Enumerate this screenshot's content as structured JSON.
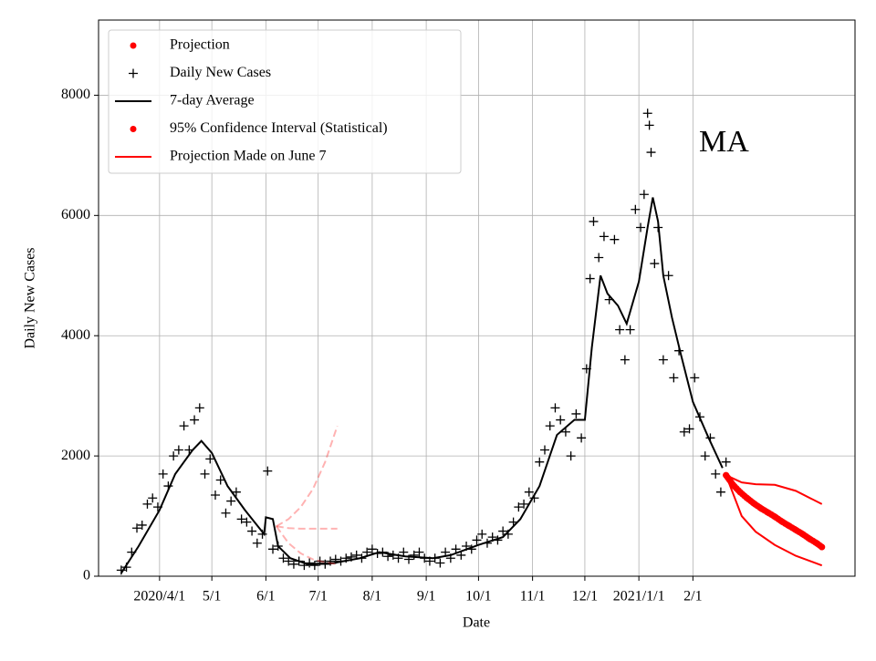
{
  "chart_data": {
    "type": "line",
    "xlabel": "Date",
    "ylabel": "Daily New Cases",
    "annotation": "MA",
    "xlim": [
      "2020-02-26",
      "2021-05-05"
    ],
    "ylim": [
      0,
      9250
    ],
    "xticks": [
      {
        "value": "2020-04-01",
        "label": "2020/4/1"
      },
      {
        "value": "2020-05-01",
        "label": "5/1"
      },
      {
        "value": "2020-06-01",
        "label": "6/1"
      },
      {
        "value": "2020-07-01",
        "label": "7/1"
      },
      {
        "value": "2020-08-01",
        "label": "8/1"
      },
      {
        "value": "2020-09-01",
        "label": "9/1"
      },
      {
        "value": "2020-10-01",
        "label": "10/1"
      },
      {
        "value": "2020-11-01",
        "label": "11/1"
      },
      {
        "value": "2020-12-01",
        "label": "12/1"
      },
      {
        "value": "2021-01-01",
        "label": "2021/1/1"
      },
      {
        "value": "2021-02-01",
        "label": "2/1"
      }
    ],
    "yticks": [
      0,
      2000,
      4000,
      6000,
      8000
    ],
    "grid": true,
    "legend": "upper left",
    "series": [
      {
        "name": "Projection",
        "color": "#ff0000",
        "kind": "dots",
        "legend_marker": "dot",
        "x": [
          "2021-02-20",
          "2021-02-24",
          "2021-02-28",
          "2021-03-04",
          "2021-03-08",
          "2021-03-12",
          "2021-03-16",
          "2021-03-20",
          "2021-03-24",
          "2021-03-28",
          "2021-04-01",
          "2021-04-05",
          "2021-04-09",
          "2021-04-13",
          "2021-04-16"
        ],
        "values": [
          1680,
          1520,
          1400,
          1300,
          1210,
          1130,
          1060,
          990,
          910,
          840,
          770,
          700,
          620,
          550,
          485
        ]
      },
      {
        "name": "Daily New Cases",
        "color": "#000000",
        "kind": "plus",
        "legend_marker": "plus",
        "x": [
          "2020-03-10",
          "2020-03-13",
          "2020-03-16",
          "2020-03-19",
          "2020-03-22",
          "2020-03-25",
          "2020-03-28",
          "2020-03-31",
          "2020-04-03",
          "2020-04-06",
          "2020-04-09",
          "2020-04-12",
          "2020-04-15",
          "2020-04-18",
          "2020-04-21",
          "2020-04-24",
          "2020-04-27",
          "2020-04-30",
          "2020-05-03",
          "2020-05-06",
          "2020-05-09",
          "2020-05-12",
          "2020-05-15",
          "2020-05-18",
          "2020-05-21",
          "2020-05-24",
          "2020-05-27",
          "2020-05-30",
          "2020-06-02",
          "2020-06-05",
          "2020-06-08",
          "2020-06-11",
          "2020-06-14",
          "2020-06-17",
          "2020-06-20",
          "2020-06-23",
          "2020-06-26",
          "2020-06-29",
          "2020-07-02",
          "2020-07-05",
          "2020-07-08",
          "2020-07-11",
          "2020-07-14",
          "2020-07-17",
          "2020-07-20",
          "2020-07-23",
          "2020-07-26",
          "2020-07-29",
          "2020-08-01",
          "2020-08-04",
          "2020-08-07",
          "2020-08-10",
          "2020-08-13",
          "2020-08-16",
          "2020-08-19",
          "2020-08-22",
          "2020-08-25",
          "2020-08-28",
          "2020-08-31",
          "2020-09-03",
          "2020-09-06",
          "2020-09-09",
          "2020-09-12",
          "2020-09-15",
          "2020-09-18",
          "2020-09-21",
          "2020-09-24",
          "2020-09-27",
          "2020-09-30",
          "2020-10-03",
          "2020-10-06",
          "2020-10-09",
          "2020-10-12",
          "2020-10-15",
          "2020-10-18",
          "2020-10-21",
          "2020-10-24",
          "2020-10-27",
          "2020-10-30",
          "2020-11-02",
          "2020-11-05",
          "2020-11-08",
          "2020-11-11",
          "2020-11-14",
          "2020-11-17",
          "2020-11-20",
          "2020-11-23",
          "2020-11-26",
          "2020-11-29",
          "2020-12-02",
          "2020-12-04",
          "2020-12-06",
          "2020-12-09",
          "2020-12-12",
          "2020-12-15",
          "2020-12-18",
          "2020-12-21",
          "2020-12-24",
          "2020-12-27",
          "2020-12-30",
          "2021-01-02",
          "2021-01-04",
          "2021-01-06",
          "2021-01-07",
          "2021-01-08",
          "2021-01-10",
          "2021-01-12",
          "2021-01-15",
          "2021-01-18",
          "2021-01-21",
          "2021-01-24",
          "2021-01-27",
          "2021-01-30",
          "2021-02-02",
          "2021-02-05",
          "2021-02-08",
          "2021-02-11",
          "2021-02-14",
          "2021-02-17",
          "2021-02-20"
        ],
        "values": [
          100,
          150,
          400,
          800,
          850,
          1200,
          1300,
          1150,
          1700,
          1500,
          2000,
          2100,
          2500,
          2100,
          2600,
          2800,
          1700,
          1950,
          1350,
          1600,
          1050,
          1250,
          1400,
          950,
          900,
          750,
          550,
          700,
          1750,
          450,
          500,
          300,
          250,
          200,
          250,
          180,
          220,
          180,
          250,
          200,
          250,
          280,
          250,
          300,
          320,
          350,
          300,
          400,
          450,
          380,
          400,
          330,
          350,
          300,
          400,
          280,
          350,
          400,
          300,
          250,
          300,
          220,
          400,
          300,
          450,
          350,
          500,
          450,
          600,
          700,
          550,
          650,
          600,
          750,
          700,
          900,
          1150,
          1200,
          1400,
          1300,
          1900,
          2100,
          2500,
          2800,
          2600,
          2400,
          2000,
          2700,
          2300,
          3450,
          4950,
          5900,
          5300,
          5650,
          4600,
          5600,
          4100,
          3600,
          4100,
          6100,
          5800,
          6350,
          7700,
          7500,
          7050,
          5200,
          5800,
          3600,
          5000,
          3300,
          3750,
          2400,
          2450,
          3300,
          2650,
          2000,
          2300,
          1700,
          1400,
          1900
        ]
      },
      {
        "name": "7-day Average",
        "color": "#000000",
        "kind": "line",
        "legend_marker": "line",
        "x": [
          "2020-03-10",
          "2020-03-20",
          "2020-04-01",
          "2020-04-10",
          "2020-04-20",
          "2020-04-25",
          "2020-05-01",
          "2020-05-10",
          "2020-05-20",
          "2020-05-31",
          "2020-06-01",
          "2020-06-05",
          "2020-06-08",
          "2020-06-15",
          "2020-06-25",
          "2020-07-10",
          "2020-07-25",
          "2020-08-05",
          "2020-08-20",
          "2020-09-05",
          "2020-09-15",
          "2020-10-01",
          "2020-10-15",
          "2020-10-25",
          "2020-11-05",
          "2020-11-15",
          "2020-11-25",
          "2020-12-01",
          "2020-12-05",
          "2020-12-10",
          "2020-12-14",
          "2020-12-20",
          "2020-12-25",
          "2021-01-01",
          "2021-01-06",
          "2021-01-09",
          "2021-01-12",
          "2021-01-15",
          "2021-01-20",
          "2021-01-25",
          "2021-02-01",
          "2021-02-10",
          "2021-02-18"
        ],
        "values": [
          50,
          500,
          1100,
          1700,
          2100,
          2250,
          2050,
          1500,
          1100,
          700,
          980,
          950,
          500,
          300,
          200,
          220,
          300,
          400,
          330,
          300,
          350,
          520,
          650,
          950,
          1500,
          2350,
          2600,
          2600,
          3800,
          5000,
          4700,
          4500,
          4200,
          4900,
          5800,
          6300,
          5900,
          5000,
          4300,
          3700,
          2900,
          2300,
          1800
        ]
      },
      {
        "name": "95% Confidence Interval (Statistical)",
        "color": "#ff0000",
        "kind": "band",
        "legend_marker": "dot",
        "x": [
          "2021-02-20",
          "2021-03-01",
          "2021-03-09",
          "2021-03-20",
          "2021-04-01",
          "2021-04-16"
        ],
        "lower": [
          1680,
          1000,
          740,
          520,
          340,
          180
        ],
        "upper": [
          1680,
          1560,
          1530,
          1520,
          1420,
          1200
        ]
      },
      {
        "name": "Projection Made on June 7",
        "color": "#ff0000",
        "kind": "dashed",
        "alpha": 0.3,
        "legend_marker": "line",
        "x": [
          "2020-06-07",
          "2020-06-14",
          "2020-06-21",
          "2020-06-28",
          "2020-07-05",
          "2020-07-12"
        ],
        "values": [
          830,
          800,
          790,
          790,
          790,
          790
        ],
        "lower": [
          830,
          550,
          380,
          280,
          230,
          200
        ],
        "upper": [
          830,
          950,
          1150,
          1450,
          1900,
          2500
        ]
      }
    ]
  }
}
